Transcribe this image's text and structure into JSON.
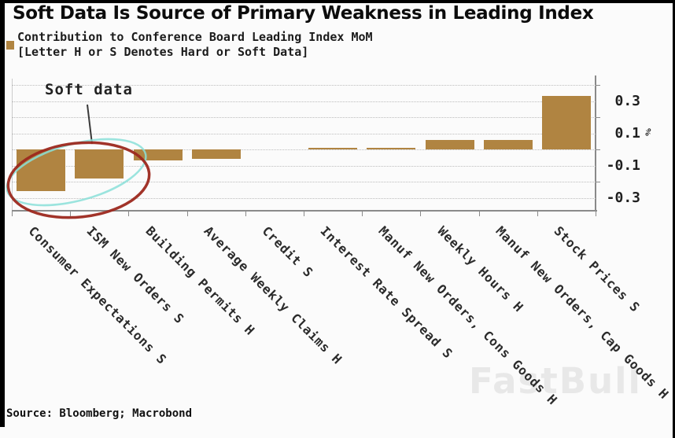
{
  "header": {
    "title": "Soft Data Is Source of Primary Weakness in Leading Index",
    "legend": {
      "line1": "Contribution to Conference Board Leading Index MoM",
      "line2": "[Letter H or S Denotes Hard or Soft Data]"
    }
  },
  "annotation": {
    "label": "Soft data",
    "ellipse_color": "#9c281e",
    "highlight_color": "#8adfd8",
    "line_color": "#3a3a3a"
  },
  "chart_data": {
    "type": "bar",
    "title": "Contribution to Conference Board Leading Index MoM",
    "note": "[Letter H or S Denotes Hard or Soft Data]",
    "unit": "%",
    "categories": [
      "Consumer Expectations S",
      "ISM New Orders S",
      "Building Permits H",
      "Average Weekly Claims H",
      "Credit S",
      "Interest Rate Spread S",
      "Manuf New Orders, Cons Goods H",
      "Weekly Hours H",
      "Manuf New Orders, Cap Goods H",
      "Stock Prices S"
    ],
    "values": [
      -0.26,
      -0.18,
      -0.07,
      -0.06,
      0.0,
      0.01,
      0.01,
      0.06,
      0.06,
      0.33
    ],
    "bar_color": "#b08441",
    "ylim": [
      -0.38,
      0.44
    ],
    "gridlines": [
      0.4,
      0.3,
      0.2,
      0.1,
      0,
      -0.1,
      -0.2,
      -0.3
    ],
    "ytick_labels": [
      0.3,
      0.1,
      -0.1,
      -0.3
    ],
    "axis_ticks": [
      0.4,
      0.2,
      0,
      -0.2
    ],
    "grid_style": "dotted",
    "ylabel_side": "right",
    "legend_position": "top-left",
    "highlighted_categories": [
      "Consumer Expectations S",
      "ISM New Orders S"
    ]
  },
  "footer": {
    "source": "Source: Bloomberg; Macrobond",
    "watermark": "FastBull"
  }
}
